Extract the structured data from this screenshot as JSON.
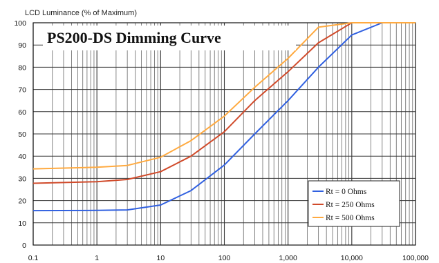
{
  "chart_data": {
    "type": "line",
    "title": "PS200-DS Dimming Curve",
    "ylabel": "LCD Luminance (% of Maximum)",
    "xlabel": "",
    "xscale": "log",
    "xlim": [
      0.1,
      100000
    ],
    "ylim": [
      0,
      100
    ],
    "grid": true,
    "legend_position": "bottom-right",
    "x_ticks": [
      "0.1",
      "1",
      "10",
      "100",
      "1,000",
      "10,000",
      "100,000"
    ],
    "y_ticks": [
      "0",
      "10",
      "20",
      "30",
      "40",
      "50",
      "60",
      "70",
      "80",
      "90",
      "100"
    ],
    "series": [
      {
        "name": "Rt = 0 Ohms",
        "color": "#3060e0",
        "points": [
          [
            0.1,
            15.5
          ],
          [
            1,
            15.6
          ],
          [
            3,
            15.8
          ],
          [
            10,
            18
          ],
          [
            30,
            24.5
          ],
          [
            100,
            36
          ],
          [
            300,
            50
          ],
          [
            1000,
            65
          ],
          [
            3000,
            80
          ],
          [
            10000,
            94.5
          ],
          [
            30000,
            100
          ],
          [
            100000,
            100
          ]
        ]
      },
      {
        "name": "Rt = 250 Ohms",
        "color": "#d04a2a",
        "points": [
          [
            0.1,
            27.8
          ],
          [
            1,
            28.5
          ],
          [
            3,
            29.5
          ],
          [
            10,
            33
          ],
          [
            30,
            40
          ],
          [
            100,
            51
          ],
          [
            300,
            65
          ],
          [
            1000,
            78
          ],
          [
            3000,
            91
          ],
          [
            10000,
            100
          ],
          [
            100000,
            100
          ]
        ]
      },
      {
        "name": "Rt = 500 Ohms",
        "color": "#ffaa40",
        "points": [
          [
            0.1,
            34.3
          ],
          [
            1,
            35
          ],
          [
            3,
            35.8
          ],
          [
            10,
            39.5
          ],
          [
            30,
            47
          ],
          [
            100,
            58
          ],
          [
            300,
            71
          ],
          [
            1000,
            84
          ],
          [
            3000,
            98
          ],
          [
            10000,
            100
          ],
          [
            100000,
            100
          ]
        ]
      }
    ]
  }
}
